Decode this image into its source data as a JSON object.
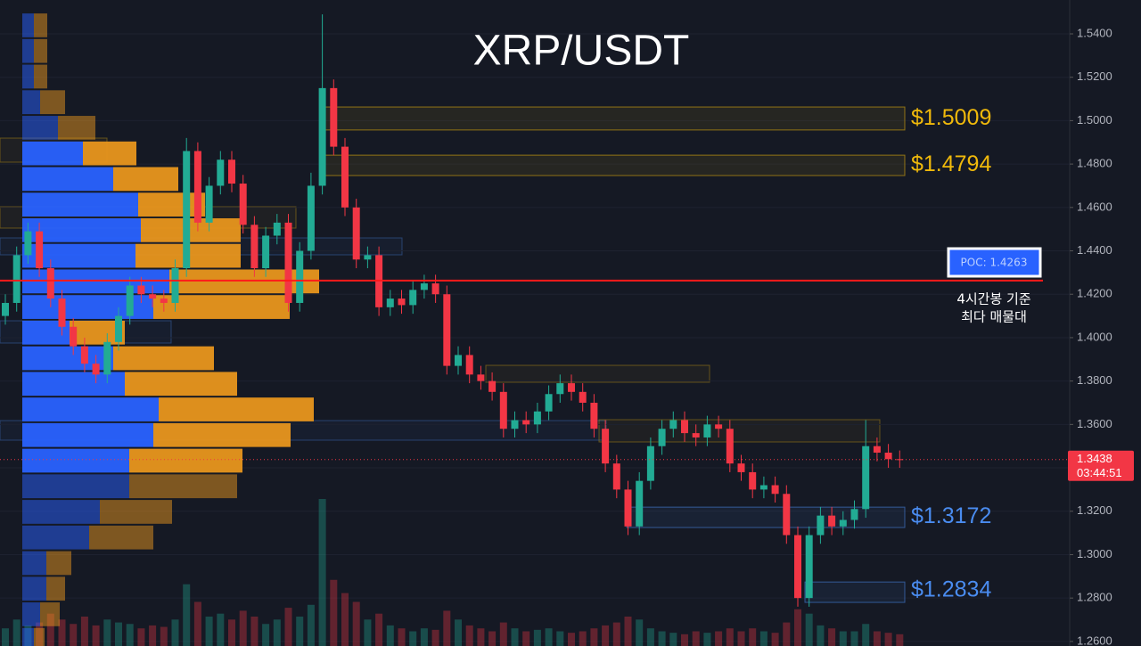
{
  "chart_data": {
    "type": "candlestick",
    "title": "XRP/USDT",
    "ylim": [
      1.2579,
      1.5556
    ],
    "yticks": [
      {
        "value": 1.54,
        "label": "1.5400"
      },
      {
        "value": 1.52,
        "label": "1.5200"
      },
      {
        "value": 1.5,
        "label": "1.5000"
      },
      {
        "value": 1.48,
        "label": "1.4800"
      },
      {
        "value": 1.46,
        "label": "1.4600"
      },
      {
        "value": 1.44,
        "label": "1.4400"
      },
      {
        "value": 1.42,
        "label": "1.4200"
      },
      {
        "value": 1.4,
        "label": "1.4000"
      },
      {
        "value": 1.38,
        "label": "1.3800"
      },
      {
        "value": 1.36,
        "label": "1.3600"
      },
      {
        "value": 1.34,
        "label": "1.3400"
      },
      {
        "value": 1.32,
        "label": "1.3200"
      },
      {
        "value": 1.3,
        "label": "1.3000"
      },
      {
        "value": 1.28,
        "label": "1.2800"
      },
      {
        "value": 1.26,
        "label": "1.2600"
      }
    ],
    "grid": true,
    "up_color": "#22ab94",
    "down_color": "#f23645",
    "open": [
      1.41,
      1.416,
      1.438,
      1.449,
      1.432,
      1.418,
      1.405,
      1.396,
      1.388,
      1.383,
      1.398,
      1.41,
      1.424,
      1.42,
      1.418,
      1.416,
      1.432,
      1.486,
      1.453,
      1.47,
      1.482,
      1.471,
      1.452,
      1.432,
      1.447,
      1.453,
      1.416,
      1.44,
      1.47,
      1.515,
      1.488,
      1.46,
      1.436,
      1.438,
      1.414,
      1.418,
      1.415,
      1.422,
      1.425,
      1.42,
      1.387,
      1.392,
      1.383,
      1.38,
      1.375,
      1.358,
      1.362,
      1.36,
      1.366,
      1.374,
      1.379,
      1.375,
      1.37,
      1.358,
      1.342,
      1.33,
      1.313,
      1.334,
      1.35,
      1.358,
      1.362,
      1.356,
      1.354,
      1.36,
      1.358,
      1.342,
      1.338,
      1.33,
      1.332,
      1.328,
      1.309,
      1.28,
      1.309,
      1.318,
      1.313,
      1.316,
      1.321,
      1.35,
      1.347,
      1.344
    ],
    "high": [
      1.42,
      1.442,
      1.453,
      1.453,
      1.436,
      1.422,
      1.409,
      1.4,
      1.392,
      1.402,
      1.414,
      1.428,
      1.428,
      1.424,
      1.422,
      1.436,
      1.492,
      1.49,
      1.474,
      1.486,
      1.486,
      1.475,
      1.456,
      1.451,
      1.457,
      1.457,
      1.444,
      1.476,
      1.549,
      1.519,
      1.492,
      1.464,
      1.442,
      1.442,
      1.422,
      1.422,
      1.426,
      1.429,
      1.429,
      1.424,
      1.396,
      1.396,
      1.387,
      1.384,
      1.379,
      1.366,
      1.366,
      1.37,
      1.378,
      1.383,
      1.383,
      1.379,
      1.374,
      1.362,
      1.346,
      1.334,
      1.338,
      1.354,
      1.362,
      1.366,
      1.366,
      1.36,
      1.364,
      1.364,
      1.362,
      1.346,
      1.342,
      1.336,
      1.336,
      1.332,
      1.313,
      1.313,
      1.322,
      1.322,
      1.32,
      1.325,
      1.362,
      1.354,
      1.351,
      1.348
    ],
    "low": [
      1.406,
      1.412,
      1.434,
      1.428,
      1.414,
      1.401,
      1.392,
      1.384,
      1.379,
      1.379,
      1.394,
      1.406,
      1.416,
      1.414,
      1.412,
      1.412,
      1.428,
      1.449,
      1.449,
      1.466,
      1.467,
      1.448,
      1.428,
      1.428,
      1.443,
      1.412,
      1.412,
      1.436,
      1.466,
      1.484,
      1.456,
      1.432,
      1.432,
      1.41,
      1.41,
      1.411,
      1.411,
      1.418,
      1.416,
      1.383,
      1.383,
      1.379,
      1.376,
      1.371,
      1.354,
      1.354,
      1.356,
      1.356,
      1.362,
      1.37,
      1.371,
      1.366,
      1.354,
      1.338,
      1.326,
      1.309,
      1.309,
      1.33,
      1.346,
      1.354,
      1.352,
      1.35,
      1.35,
      1.354,
      1.338,
      1.334,
      1.326,
      1.326,
      1.324,
      1.305,
      1.276,
      1.276,
      1.305,
      1.309,
      1.309,
      1.312,
      1.317,
      1.343,
      1.34,
      1.34
    ],
    "close": [
      1.416,
      1.438,
      1.449,
      1.432,
      1.418,
      1.405,
      1.396,
      1.388,
      1.383,
      1.398,
      1.41,
      1.424,
      1.42,
      1.418,
      1.416,
      1.432,
      1.486,
      1.453,
      1.47,
      1.482,
      1.471,
      1.452,
      1.432,
      1.447,
      1.453,
      1.416,
      1.44,
      1.47,
      1.515,
      1.488,
      1.46,
      1.436,
      1.438,
      1.414,
      1.418,
      1.415,
      1.422,
      1.425,
      1.42,
      1.387,
      1.392,
      1.383,
      1.38,
      1.375,
      1.358,
      1.362,
      1.36,
      1.366,
      1.374,
      1.379,
      1.375,
      1.37,
      1.358,
      1.342,
      1.33,
      1.313,
      1.334,
      1.35,
      1.358,
      1.362,
      1.356,
      1.354,
      1.36,
      1.358,
      1.342,
      1.338,
      1.33,
      1.332,
      1.328,
      1.309,
      1.28,
      1.309,
      1.318,
      1.313,
      1.316,
      1.321,
      1.35,
      1.347,
      1.344,
      1.3438
    ],
    "volume": [
      12,
      18,
      14,
      16,
      22,
      18,
      15,
      20,
      14,
      18,
      16,
      15,
      12,
      14,
      13,
      18,
      42,
      30,
      20,
      22,
      18,
      24,
      20,
      15,
      18,
      26,
      20,
      28,
      100,
      45,
      36,
      30,
      18,
      22,
      14,
      12,
      10,
      12,
      11,
      24,
      18,
      14,
      12,
      10,
      16,
      12,
      10,
      11,
      12,
      10,
      9,
      10,
      12,
      14,
      16,
      20,
      18,
      12,
      10,
      9,
      8,
      10,
      9,
      10,
      12,
      10,
      12,
      10,
      9,
      16,
      25,
      22,
      14,
      12,
      10,
      10,
      15,
      10,
      9,
      8
    ],
    "volume_profile": {
      "levels": [
        1.5494,
        1.5376,
        1.5258,
        1.514,
        1.5022,
        1.4904,
        1.4786,
        1.4668,
        1.455,
        1.4432,
        1.4314,
        1.4196,
        1.4078,
        1.396,
        1.3842,
        1.3724,
        1.3606,
        1.3488,
        1.337,
        1.3252,
        1.3134,
        1.3016,
        1.2898,
        1.278,
        1.2662
      ],
      "buy": [
        13,
        13,
        13,
        20,
        40,
        68,
        102,
        130,
        133,
        127,
        165,
        147,
        53,
        102,
        115,
        153,
        147,
        120,
        120,
        87,
        75,
        27,
        27,
        20,
        13
      ],
      "sell": [
        15,
        15,
        15,
        28,
        42,
        60,
        73,
        75,
        112,
        118,
        168,
        153,
        62,
        113,
        126,
        174,
        154,
        127,
        121,
        81,
        72,
        28,
        21,
        22,
        12
      ]
    },
    "zones": [
      {
        "label": "$1.5009",
        "value": 1.5009,
        "low": 1.4957,
        "high": 1.5063,
        "color": "#f0b90b"
      },
      {
        "label": "$1.4794",
        "value": 1.4794,
        "low": 1.4747,
        "high": 1.4841,
        "color": "#f0b90b"
      },
      {
        "label": "$1.3172",
        "value": 1.3172,
        "low": 1.3125,
        "high": 1.3219,
        "color": "#4a8cf0"
      },
      {
        "label": "$1.2834",
        "value": 1.2834,
        "low": 1.278,
        "high": 1.2874,
        "color": "#4a8cf0"
      }
    ],
    "poc": {
      "value": 1.4263,
      "label": "POC: 1.4263"
    },
    "poc_note": [
      "4시간봉 기준",
      "최다 매물대"
    ],
    "last_price": {
      "value": 1.3438,
      "label": "1.3438"
    },
    "countdown": "03:44:51"
  }
}
